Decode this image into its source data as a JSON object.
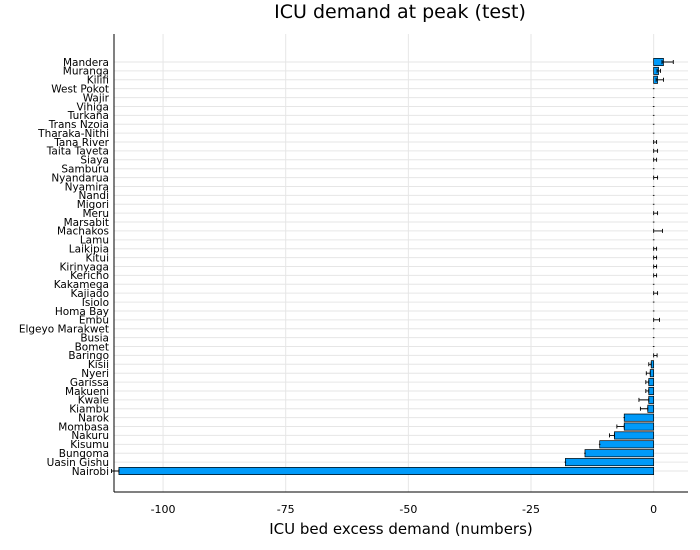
{
  "chart_data": {
    "type": "bar",
    "orientation": "horizontal",
    "title": "ICU demand at peak (test)",
    "xlabel": "ICU bed excess demand (numbers)",
    "ylabel": "",
    "xlim": [
      -110,
      7
    ],
    "xticks": [
      -100,
      -75,
      -50,
      -25,
      0
    ],
    "grid": true,
    "bar_color": "#009AF9",
    "categories": [
      "Nairobi",
      "Uasin Gishu",
      "Bungoma",
      "Kisumu",
      "Nakuru",
      "Mombasa",
      "Narok",
      "Kiambu",
      "Kwale",
      "Makueni",
      "Garissa",
      "Nyeri",
      "Kisii",
      "Baringo",
      "Bomet",
      "Busia",
      "Elgeyo Marakwet",
      "Embu",
      "Homa Bay",
      "Isiolo",
      "Kajiado",
      "Kakamega",
      "Kericho",
      "Kirinyaga",
      "Kitui",
      "Laikipia",
      "Lamu",
      "Machakos",
      "Marsabit",
      "Meru",
      "Migori",
      "Nandi",
      "Nyamira",
      "Nyandarua",
      "Samburu",
      "Siaya",
      "Taita Taveta",
      "Tana River",
      "Tharaka-Nithi",
      "Trans Nzoia",
      "Turkana",
      "Vihiga",
      "Wajir",
      "West Pokot",
      "Kilifi",
      "Muranga",
      "Mandera"
    ],
    "values": [
      -109,
      -18,
      -14,
      -11,
      -8,
      -6,
      -6,
      -1.2,
      -1,
      -1,
      -1,
      -0.7,
      -0.5,
      0,
      0,
      0,
      0,
      0,
      0,
      0,
      0,
      0,
      0,
      0,
      0,
      0,
      0,
      0,
      0,
      0,
      0,
      0,
      0,
      0,
      0,
      0,
      0,
      0,
      0,
      0,
      0,
      0,
      0,
      0,
      0.8,
      1,
      2
    ],
    "error_low": [
      1.5,
      0,
      0,
      0,
      1,
      1.5,
      0,
      1.5,
      2,
      0.6,
      0.6,
      0.8,
      0.5,
      0,
      0,
      0,
      0,
      0,
      0,
      0,
      0,
      0,
      0,
      0,
      0,
      0,
      0,
      0,
      0,
      0,
      0,
      0,
      0,
      0,
      0,
      0,
      0,
      0,
      0,
      0,
      0,
      0,
      0,
      0,
      0.3,
      0.3,
      0.3
    ],
    "error_high": [
      0,
      0,
      0,
      0,
      0,
      0,
      0,
      0,
      0,
      0,
      0,
      0,
      0,
      0.7,
      0,
      0,
      0,
      1.2,
      0,
      0,
      0.8,
      0,
      0.6,
      0.6,
      0.6,
      0.6,
      0,
      1.8,
      0,
      0.8,
      0,
      0,
      0,
      0.8,
      0,
      0.6,
      0.8,
      0.6,
      0,
      0,
      0,
      0,
      0,
      0,
      1.2,
      0.4,
      2
    ]
  }
}
